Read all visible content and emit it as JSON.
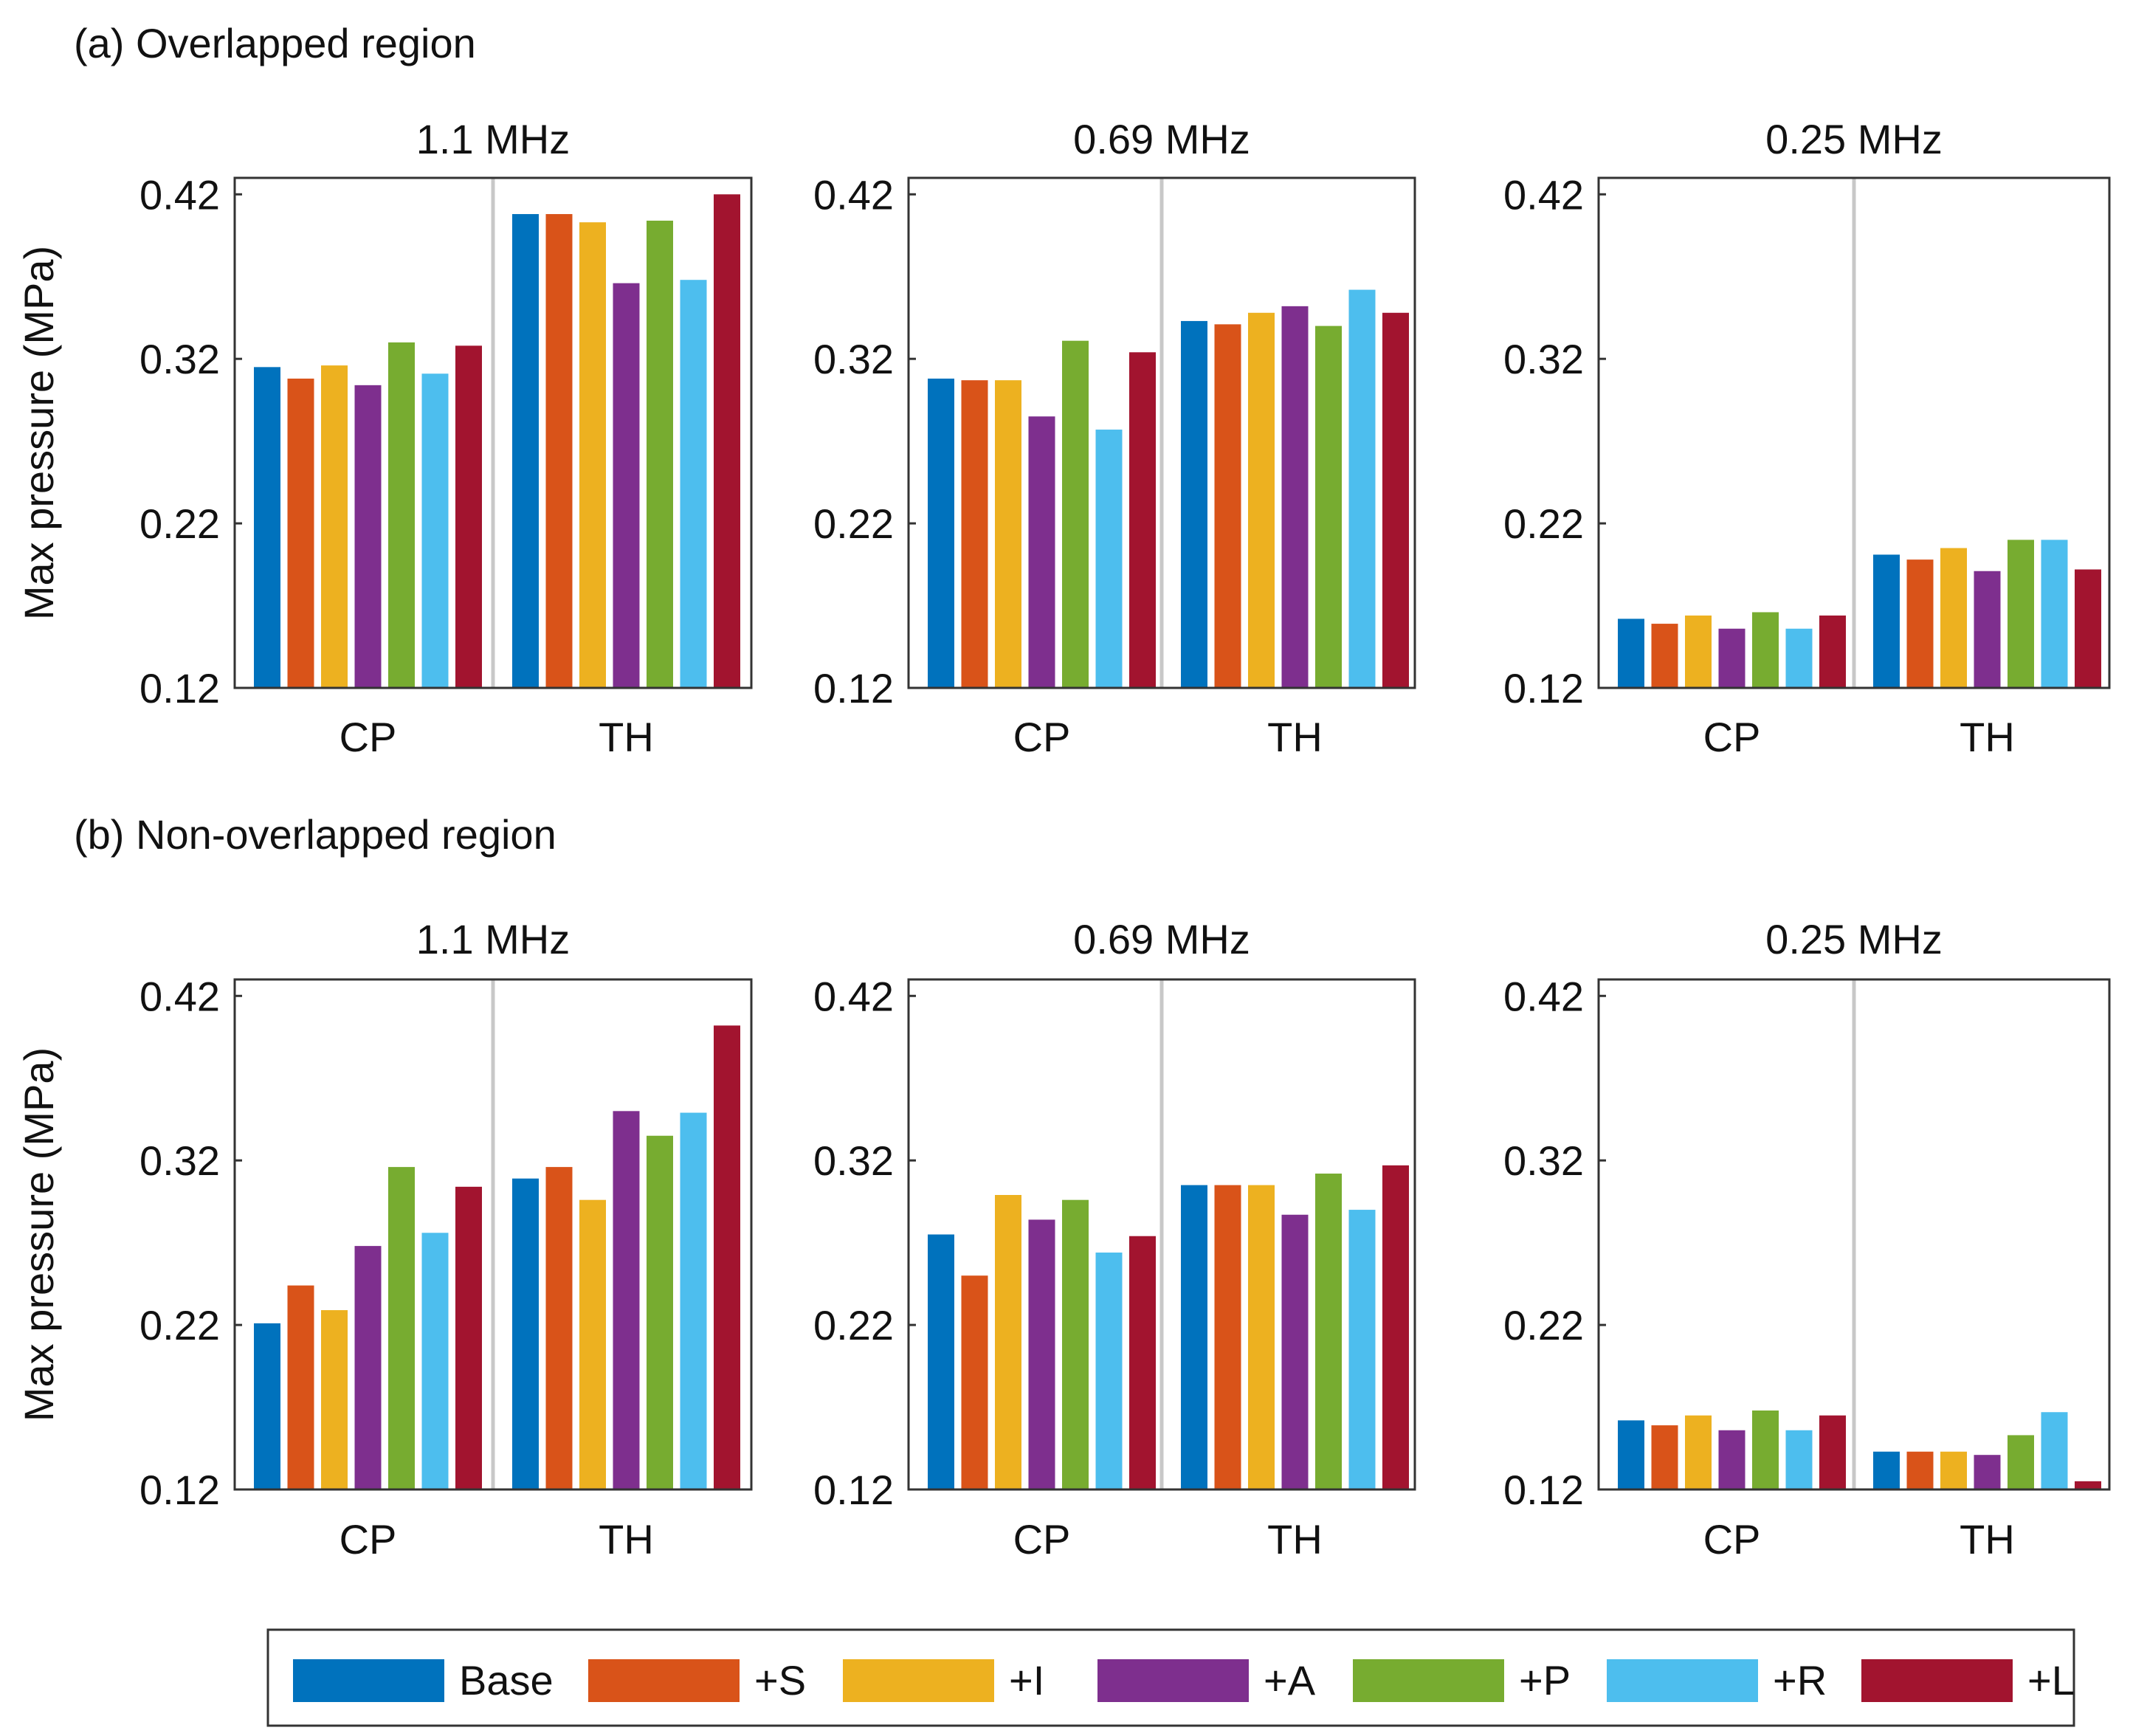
{
  "rows": [
    {
      "label": "(a) Overlapped region"
    },
    {
      "label": "(b) Non-overlapped region"
    }
  ],
  "legend": [
    {
      "label": "Base",
      "color": "#0072BD"
    },
    {
      "label": "+S",
      "color": "#D95319"
    },
    {
      "label": "+I",
      "color": "#EDB120"
    },
    {
      "label": "+A",
      "color": "#7E2F8E"
    },
    {
      "label": "+P",
      "color": "#77AC30"
    },
    {
      "label": "+R",
      "color": "#4DBEEE"
    },
    {
      "label": "+L",
      "color": "#A2142F"
    }
  ],
  "chart_data": [
    {
      "type": "bar",
      "row": 0,
      "col": 0,
      "title": "1.1 MHz",
      "ylabel": "Max pressure (MPa)",
      "ylim": [
        0.12,
        0.43
      ],
      "yticks": [
        "0.12",
        "0.22",
        "0.32",
        "0.42"
      ],
      "categories": [
        "CP",
        "TH"
      ],
      "series": [
        {
          "name": "Base",
          "values": [
            0.315,
            0.408
          ]
        },
        {
          "name": "+S",
          "values": [
            0.308,
            0.408
          ]
        },
        {
          "name": "+I",
          "values": [
            0.316,
            0.403
          ]
        },
        {
          "name": "+A",
          "values": [
            0.304,
            0.366
          ]
        },
        {
          "name": "+P",
          "values": [
            0.33,
            0.404
          ]
        },
        {
          "name": "+R",
          "values": [
            0.311,
            0.368
          ]
        },
        {
          "name": "+L",
          "values": [
            0.328,
            0.42
          ]
        }
      ]
    },
    {
      "type": "bar",
      "row": 0,
      "col": 1,
      "title": "0.69 MHz",
      "ylabel": "",
      "ylim": [
        0.12,
        0.43
      ],
      "yticks": [
        "0.12",
        "0.22",
        "0.32",
        "0.42"
      ],
      "categories": [
        "CP",
        "TH"
      ],
      "series": [
        {
          "name": "Base",
          "values": [
            0.308,
            0.343
          ]
        },
        {
          "name": "+S",
          "values": [
            0.307,
            0.341
          ]
        },
        {
          "name": "+I",
          "values": [
            0.307,
            0.348
          ]
        },
        {
          "name": "+A",
          "values": [
            0.285,
            0.352
          ]
        },
        {
          "name": "+P",
          "values": [
            0.331,
            0.34
          ]
        },
        {
          "name": "+R",
          "values": [
            0.277,
            0.362
          ]
        },
        {
          "name": "+L",
          "values": [
            0.324,
            0.348
          ]
        }
      ]
    },
    {
      "type": "bar",
      "row": 0,
      "col": 2,
      "title": "0.25 MHz",
      "ylabel": "",
      "ylim": [
        0.12,
        0.43
      ],
      "yticks": [
        "0.12",
        "0.22",
        "0.32",
        "0.42"
      ],
      "categories": [
        "CP",
        "TH"
      ],
      "series": [
        {
          "name": "Base",
          "values": [
            0.162,
            0.201
          ]
        },
        {
          "name": "+S",
          "values": [
            0.159,
            0.198
          ]
        },
        {
          "name": "+I",
          "values": [
            0.164,
            0.205
          ]
        },
        {
          "name": "+A",
          "values": [
            0.156,
            0.191
          ]
        },
        {
          "name": "+P",
          "values": [
            0.166,
            0.21
          ]
        },
        {
          "name": "+R",
          "values": [
            0.156,
            0.21
          ]
        },
        {
          "name": "+L",
          "values": [
            0.164,
            0.192
          ]
        }
      ]
    },
    {
      "type": "bar",
      "row": 1,
      "col": 0,
      "title": "1.1 MHz",
      "ylabel": "Max pressure (MPa)",
      "ylim": [
        0.12,
        0.43
      ],
      "yticks": [
        "0.12",
        "0.22",
        "0.32",
        "0.42"
      ],
      "categories": [
        "CP",
        "TH"
      ],
      "series": [
        {
          "name": "Base",
          "values": [
            0.221,
            0.309
          ]
        },
        {
          "name": "+S",
          "values": [
            0.244,
            0.316
          ]
        },
        {
          "name": "+I",
          "values": [
            0.229,
            0.296
          ]
        },
        {
          "name": "+A",
          "values": [
            0.268,
            0.35
          ]
        },
        {
          "name": "+P",
          "values": [
            0.316,
            0.335
          ]
        },
        {
          "name": "+R",
          "values": [
            0.276,
            0.349
          ]
        },
        {
          "name": "+L",
          "values": [
            0.304,
            0.402
          ]
        }
      ]
    },
    {
      "type": "bar",
      "row": 1,
      "col": 1,
      "title": "0.69 MHz",
      "ylabel": "",
      "ylim": [
        0.12,
        0.43
      ],
      "yticks": [
        "0.12",
        "0.22",
        "0.32",
        "0.42"
      ],
      "categories": [
        "CP",
        "TH"
      ],
      "series": [
        {
          "name": "Base",
          "values": [
            0.275,
            0.305
          ]
        },
        {
          "name": "+S",
          "values": [
            0.25,
            0.305
          ]
        },
        {
          "name": "+I",
          "values": [
            0.299,
            0.305
          ]
        },
        {
          "name": "+A",
          "values": [
            0.284,
            0.287
          ]
        },
        {
          "name": "+P",
          "values": [
            0.296,
            0.312
          ]
        },
        {
          "name": "+R",
          "values": [
            0.264,
            0.29
          ]
        },
        {
          "name": "+L",
          "values": [
            0.274,
            0.317
          ]
        }
      ]
    },
    {
      "type": "bar",
      "row": 1,
      "col": 2,
      "title": "0.25 MHz",
      "ylabel": "",
      "ylim": [
        0.12,
        0.43
      ],
      "yticks": [
        "0.12",
        "0.22",
        "0.32",
        "0.42"
      ],
      "categories": [
        "CP",
        "TH"
      ],
      "series": [
        {
          "name": "Base",
          "values": [
            0.162,
            0.143
          ]
        },
        {
          "name": "+S",
          "values": [
            0.159,
            0.143
          ]
        },
        {
          "name": "+I",
          "values": [
            0.165,
            0.143
          ]
        },
        {
          "name": "+A",
          "values": [
            0.156,
            0.141
          ]
        },
        {
          "name": "+P",
          "values": [
            0.168,
            0.153
          ]
        },
        {
          "name": "+R",
          "values": [
            0.156,
            0.167
          ]
        },
        {
          "name": "+L",
          "values": [
            0.165,
            0.125
          ]
        }
      ]
    }
  ]
}
